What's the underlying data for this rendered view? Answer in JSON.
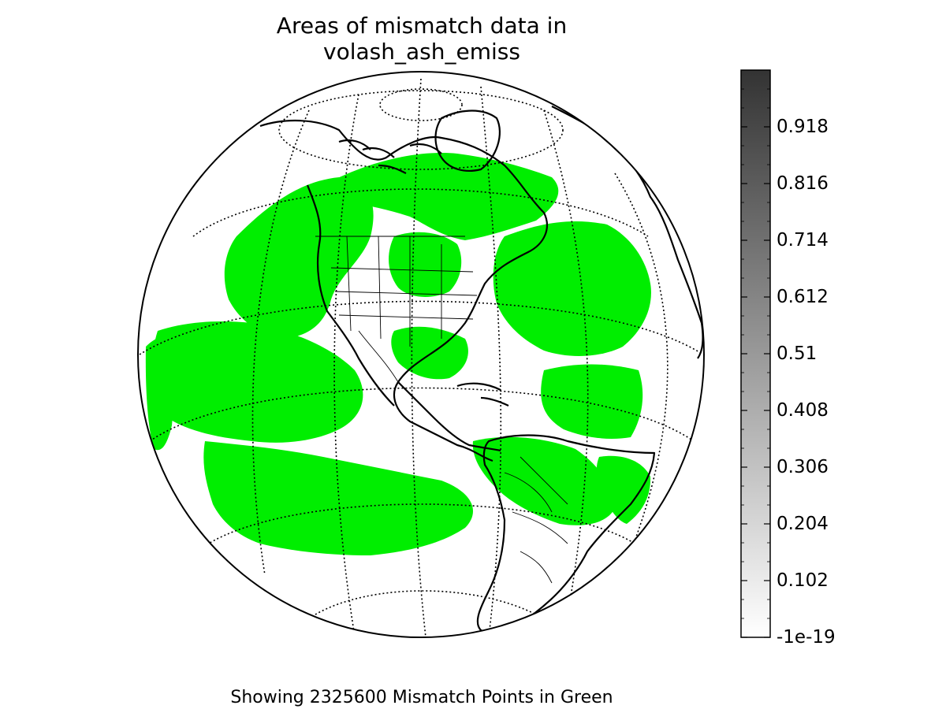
{
  "figure": {
    "title_line1": "Areas of mismatch data in",
    "title_line2": "volash_ash_emiss",
    "caption": "Showing 2325600 Mismatch Points in Green"
  },
  "map": {
    "projection": "orthographic",
    "mismatch_color": "#00ee00",
    "coastline_color": "#000000",
    "graticule": "dotted"
  },
  "colorbar": {
    "colormap": "grayscale",
    "color_min": "#ffffff",
    "color_max": "#333333",
    "range": [
      -1e-19,
      1.02
    ],
    "ticks": [
      {
        "label": "0.918",
        "value": 0.918
      },
      {
        "label": "0.816",
        "value": 0.816
      },
      {
        "label": "0.714",
        "value": 0.714
      },
      {
        "label": "0.612",
        "value": 0.612
      },
      {
        "label": "0.51",
        "value": 0.51
      },
      {
        "label": "0.408",
        "value": 0.408
      },
      {
        "label": "0.306",
        "value": 0.306
      },
      {
        "label": "0.204",
        "value": 0.204
      },
      {
        "label": "0.102",
        "value": 0.102
      },
      {
        "label": "-1e-19",
        "value": -1e-19
      }
    ]
  }
}
